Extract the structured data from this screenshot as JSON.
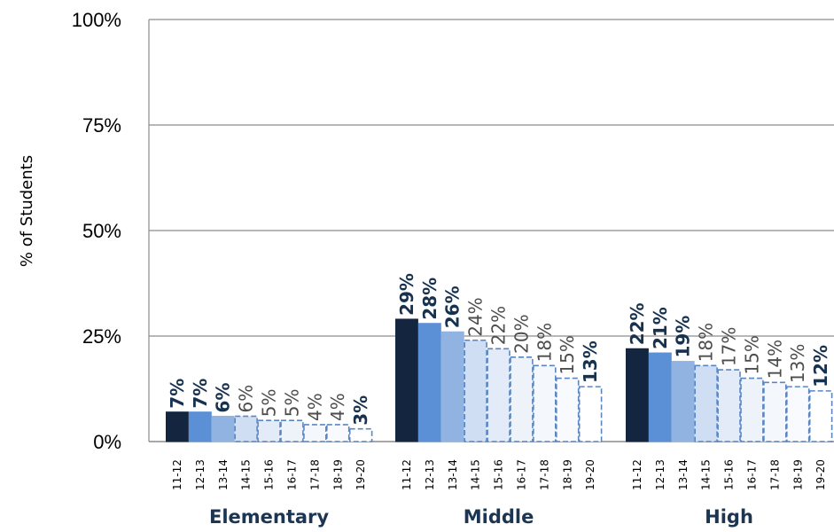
{
  "chart_data": {
    "type": "bar",
    "ylabel": "% of Students",
    "xlabel": "",
    "ylim": [
      0,
      100
    ],
    "yticks": [
      "0%",
      "25%",
      "50%",
      "75%",
      "100%"
    ],
    "ytick_values": [
      0,
      25,
      50,
      75,
      100
    ],
    "grid": true,
    "legend": "none",
    "groups": [
      {
        "name": "Elementary",
        "categories": [
          "11-12",
          "12-13",
          "13-14",
          "14-15",
          "15-16",
          "16-17",
          "17-18",
          "18-19",
          "19-20"
        ],
        "values": [
          7,
          7,
          6,
          6,
          5,
          5,
          4,
          4,
          3
        ],
        "labels": [
          "7%",
          "7%",
          "6%",
          "6%",
          "5%",
          "5%",
          "4%",
          "4%",
          "3%"
        ]
      },
      {
        "name": "Middle",
        "categories": [
          "11-12",
          "12-13",
          "13-14",
          "14-15",
          "15-16",
          "16-17",
          "17-18",
          "18-19",
          "19-20"
        ],
        "values": [
          29,
          28,
          26,
          24,
          22,
          20,
          18,
          15,
          13
        ],
        "labels": [
          "29%",
          "28%",
          "26%",
          "24%",
          "22%",
          "20%",
          "18%",
          "15%",
          "13%"
        ]
      },
      {
        "name": "High",
        "categories": [
          "11-12",
          "12-13",
          "13-14",
          "14-15",
          "15-16",
          "16-17",
          "17-18",
          "18-19",
          "19-20"
        ],
        "values": [
          22,
          21,
          19,
          18,
          17,
          15,
          14,
          13,
          12
        ],
        "labels": [
          "22%",
          "21%",
          "19%",
          "18%",
          "17%",
          "15%",
          "14%",
          "13%",
          "12%"
        ]
      }
    ],
    "bar_styles": [
      {
        "fill": "#13253f",
        "stroke": "#13253f",
        "dashed": false,
        "label_bold": true
      },
      {
        "fill": "#5b8fd6",
        "stroke": "#5b8fd6",
        "dashed": false,
        "label_bold": true
      },
      {
        "fill": "#90b3e2",
        "stroke": "#90b3e2",
        "dashed": false,
        "label_bold": true
      },
      {
        "fill": "#cfdef3",
        "stroke": "#5b86c4",
        "dashed": true,
        "label_bold": false
      },
      {
        "fill": "#e2ebf7",
        "stroke": "#5b86c4",
        "dashed": true,
        "label_bold": false
      },
      {
        "fill": "#eef3fa",
        "stroke": "#5b86c4",
        "dashed": true,
        "label_bold": false
      },
      {
        "fill": "#f4f7fc",
        "stroke": "#5b86c4",
        "dashed": true,
        "label_bold": false
      },
      {
        "fill": "#f8fafd",
        "stroke": "#5b86c4",
        "dashed": true,
        "label_bold": false
      },
      {
        "fill": "#ffffff",
        "stroke": "#5b86c4",
        "dashed": true,
        "label_bold": true
      }
    ]
  }
}
